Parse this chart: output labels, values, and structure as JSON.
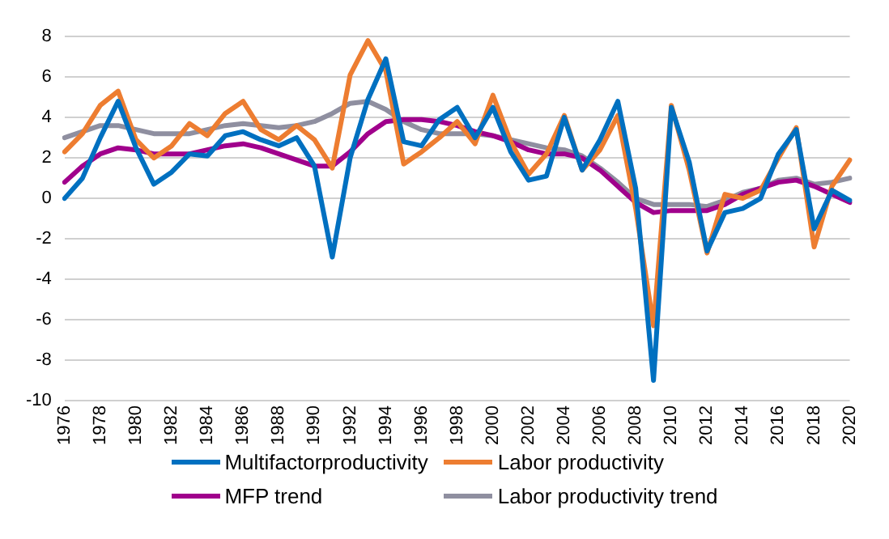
{
  "chart_data": {
    "type": "line",
    "categories": [
      "1976",
      null,
      "1978",
      null,
      "1980",
      null,
      "1982",
      null,
      "1984",
      null,
      "1986",
      null,
      "1988",
      null,
      "1990",
      null,
      "1992",
      null,
      "1994",
      null,
      "1996",
      null,
      "1998",
      null,
      "2000",
      null,
      "2002",
      null,
      "2004",
      null,
      "2006",
      null,
      "2008",
      null,
      "2010",
      null,
      "2012",
      null,
      "2014",
      null,
      "2016",
      null,
      "2018",
      null,
      "2020"
    ],
    "series": [
      {
        "name": "Multifactorproductivity",
        "color": "#0070c0",
        "values": [
          0,
          1.0,
          3.0,
          4.8,
          2.5,
          0.7,
          1.3,
          2.2,
          2.1,
          3.1,
          3.3,
          2.9,
          2.6,
          3.0,
          1.6,
          -2.9,
          2.0,
          4.9,
          6.9,
          2.8,
          2.6,
          3.9,
          4.5,
          3.0,
          4.5,
          2.3,
          0.9,
          1.1,
          4.0,
          1.4,
          2.9,
          4.8,
          0.5,
          -9.0,
          4.5,
          1.8,
          -2.6,
          -0.7,
          -0.5,
          0.0,
          2.2,
          3.4,
          -1.5,
          0.4,
          -0.1
        ]
      },
      {
        "name": "Labor productivity",
        "color": "#ed7d31",
        "values": [
          2.3,
          3.2,
          4.6,
          5.3,
          2.9,
          2.0,
          2.6,
          3.7,
          3.1,
          4.2,
          4.8,
          3.4,
          2.9,
          3.6,
          2.9,
          1.5,
          6.1,
          7.8,
          6.3,
          1.7,
          2.3,
          3.0,
          3.8,
          2.7,
          5.1,
          2.8,
          1.2,
          2.2,
          4.1,
          1.4,
          2.4,
          4.1,
          -0.5,
          -6.3,
          4.6,
          1.4,
          -2.7,
          0.2,
          0.0,
          0.4,
          2.0,
          3.5,
          -2.4,
          0.6,
          1.9
        ]
      },
      {
        "name": "MFP trend",
        "color": "#a0008c",
        "values": [
          0.8,
          1.6,
          2.2,
          2.5,
          2.4,
          2.2,
          2.2,
          2.2,
          2.4,
          2.6,
          2.7,
          2.5,
          2.2,
          1.9,
          1.6,
          1.6,
          2.3,
          3.2,
          3.8,
          3.9,
          3.9,
          3.8,
          3.6,
          3.3,
          3.1,
          2.8,
          2.4,
          2.2,
          2.2,
          2.0,
          1.4,
          0.6,
          -0.2,
          -0.7,
          -0.6,
          -0.6,
          -0.6,
          -0.3,
          0.2,
          0.5,
          0.8,
          0.9,
          0.6,
          0.2,
          -0.2
        ]
      },
      {
        "name": "Labor productivity trend",
        "color": "#8f8fa0",
        "values": [
          3.0,
          3.3,
          3.6,
          3.6,
          3.4,
          3.2,
          3.2,
          3.2,
          3.4,
          3.6,
          3.7,
          3.6,
          3.5,
          3.6,
          3.8,
          4.2,
          4.7,
          4.8,
          4.4,
          3.8,
          3.4,
          3.2,
          3.2,
          3.2,
          3.1,
          2.9,
          2.7,
          2.5,
          2.4,
          2.1,
          1.5,
          0.8,
          0.0,
          -0.3,
          -0.3,
          -0.3,
          -0.4,
          -0.1,
          0.3,
          0.5,
          0.9,
          1.0,
          0.7,
          0.8,
          1.0
        ]
      }
    ],
    "ylim": [
      -10,
      8
    ],
    "yticks": [
      -10,
      -8,
      -6,
      -4,
      -2,
      0,
      2,
      4,
      6,
      8
    ],
    "grid": "y",
    "legend": "bottom",
    "marker": "none",
    "line_style": "solid"
  }
}
